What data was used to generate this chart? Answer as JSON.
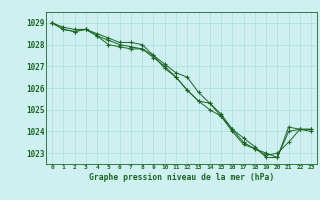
{
  "title": "Graphe pression niveau de la mer (hPa)",
  "background_color": "#cff0f0",
  "grid_color": "#aadddd",
  "line_color": "#1a6620",
  "marker_color": "#1a6620",
  "xlim": [
    -0.5,
    23.5
  ],
  "ylim": [
    1022.5,
    1029.5
  ],
  "yticks": [
    1023,
    1024,
    1025,
    1026,
    1027,
    1028,
    1029
  ],
  "xticks": [
    0,
    1,
    2,
    3,
    4,
    5,
    6,
    7,
    8,
    9,
    10,
    11,
    12,
    13,
    14,
    15,
    16,
    17,
    18,
    19,
    20,
    21,
    22,
    23
  ],
  "series1": [
    1029.0,
    1028.8,
    1028.7,
    1028.7,
    1028.5,
    1028.3,
    1028.1,
    1028.1,
    1028.0,
    1027.5,
    1027.1,
    1026.7,
    1026.5,
    1025.8,
    1025.3,
    1024.7,
    1024.1,
    1023.7,
    1023.3,
    1022.8,
    1022.8,
    1024.2,
    1024.1,
    1024.1
  ],
  "series2": [
    1029.0,
    1028.7,
    1028.6,
    1028.7,
    1028.4,
    1028.2,
    1028.0,
    1027.9,
    1027.8,
    1027.4,
    1027.0,
    1026.5,
    1025.9,
    1025.4,
    1025.3,
    1024.8,
    1024.1,
    1023.5,
    1023.2,
    1022.9,
    1023.0,
    1023.5,
    1024.1,
    1024.0
  ],
  "series3": [
    1029.0,
    1028.7,
    1028.6,
    1028.7,
    1028.4,
    1028.0,
    1027.9,
    1027.8,
    1027.8,
    1027.5,
    1026.9,
    1026.5,
    1025.9,
    1025.4,
    1025.0,
    1024.7,
    1024.0,
    1023.4,
    1023.2,
    1023.0,
    1022.8,
    1024.0,
    1024.1,
    1024.1
  ],
  "figsize": [
    3.2,
    2.0
  ],
  "dpi": 100
}
